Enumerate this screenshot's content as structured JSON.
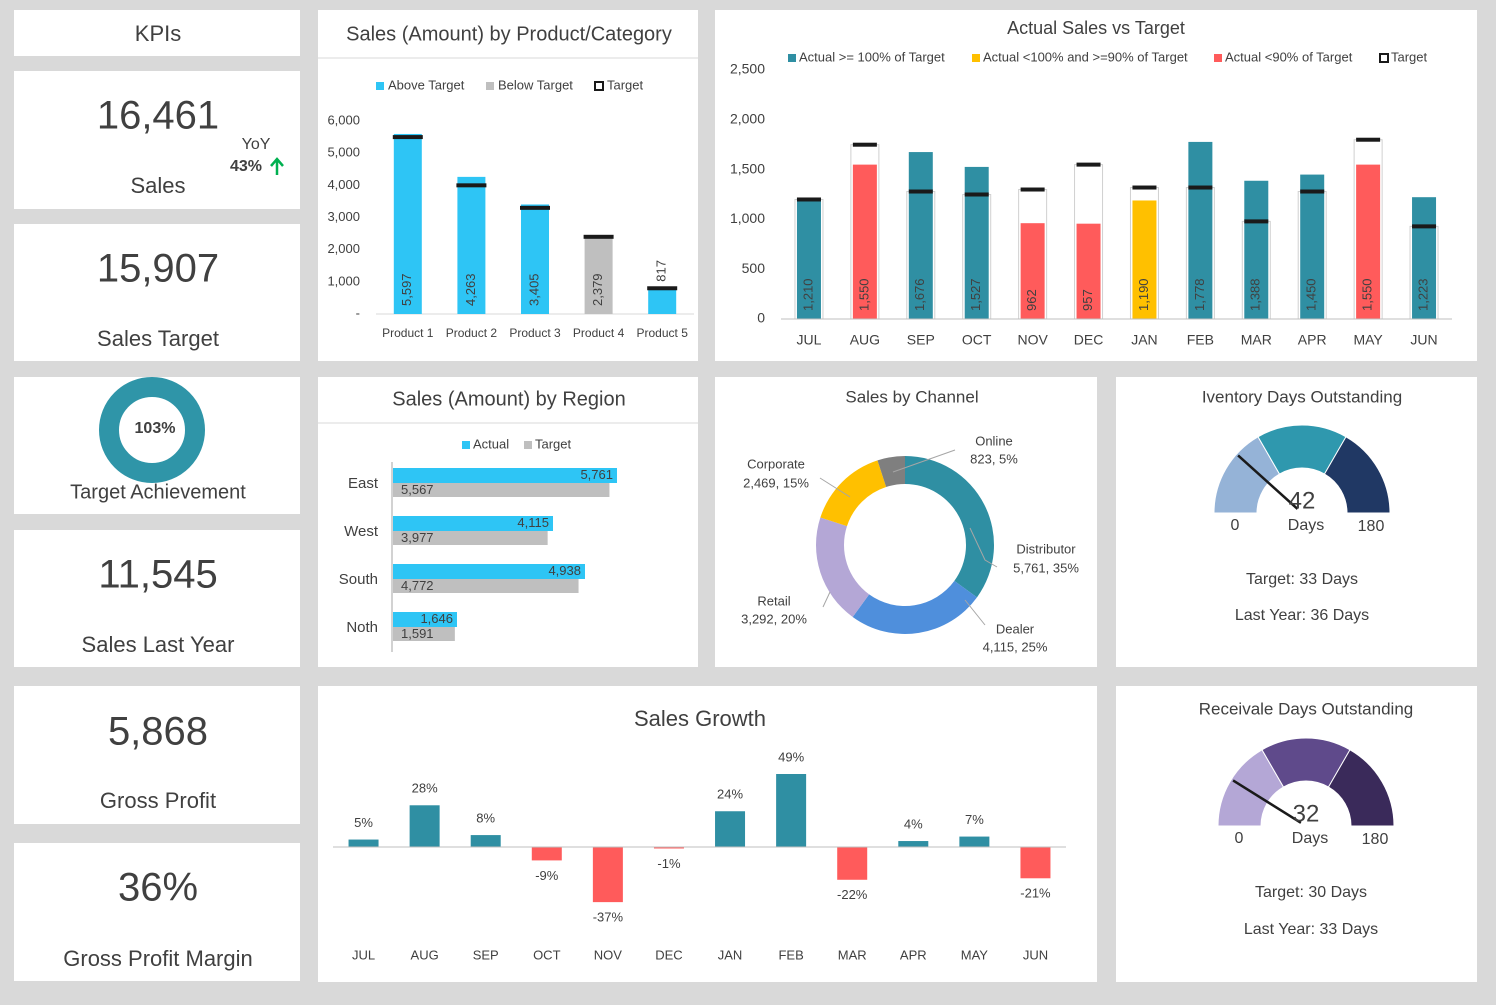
{
  "kpis": {
    "title": "KPIs",
    "cards": [
      {
        "value": "16,461",
        "label": "Sales",
        "yoy_label": "YoY",
        "yoy": "43%"
      },
      {
        "value": "15,907",
        "label": "Sales Target"
      },
      {
        "value": "11,545",
        "label": "Sales Last Year"
      },
      {
        "value": "5,868",
        "label": "Gross Profit"
      },
      {
        "value": "36%",
        "label": "Gross Profit Margin"
      }
    ]
  },
  "chart_data": [
    {
      "type": "ring",
      "label": "Target Achievement",
      "value": 103,
      "value_label": "103%",
      "color": "#2f95a8"
    },
    {
      "type": "bar_target",
      "title": "Sales (Amount) by Product/Category",
      "categories": [
        "Product 1",
        "Product 2",
        "Product 3",
        "Product 4",
        "Product 5"
      ],
      "values": [
        5597,
        4263,
        3405,
        2379,
        817
      ],
      "value_labels": [
        "5,597",
        "4,263",
        "3,405",
        "2,379",
        "817"
      ],
      "targets": [
        5500,
        4000,
        3300,
        2400,
        800
      ],
      "colors": [
        "#2ec5f5",
        "#2ec5f5",
        "#2ec5f5",
        "#bfbfbf",
        "#2ec5f5"
      ],
      "legend": [
        {
          "name": "Above Target",
          "color": "#2ec5f5"
        },
        {
          "name": "Below Target",
          "color": "#bfbfbf"
        },
        {
          "name": "Target",
          "color": "#1a1a1a"
        }
      ],
      "ylim": [
        0,
        6000
      ],
      "yticks": [
        {
          "value": 0,
          "label": "-"
        },
        {
          "value": 1000,
          "label": "1,000"
        },
        {
          "value": 2000,
          "label": "2,000"
        },
        {
          "value": 3000,
          "label": "3,000"
        },
        {
          "value": 4000,
          "label": "4,000"
        },
        {
          "value": 5000,
          "label": "5,000"
        },
        {
          "value": 6000,
          "label": "6,000"
        }
      ]
    },
    {
      "type": "column_threshold",
      "title": "Actual Sales vs Target",
      "categories": [
        "JUL",
        "AUG",
        "SEP",
        "OCT",
        "NOV",
        "DEC",
        "JAN",
        "FEB",
        "MAR",
        "APR",
        "MAY",
        "JUN"
      ],
      "values": [
        1210,
        1550,
        1676,
        1527,
        962,
        957,
        1190,
        1778,
        1388,
        1450,
        1550,
        1223
      ],
      "value_labels": [
        "1,210",
        "1,550",
        "1,676",
        "1,527",
        "962",
        "957",
        "1,190",
        "1,778",
        "1,388",
        "1,450",
        "1,550",
        "1,223"
      ],
      "targets": [
        1200,
        1750,
        1280,
        1250,
        1300,
        1550,
        1320,
        1320,
        980,
        1280,
        1800,
        930
      ],
      "colors": [
        "#2f8fa3",
        "#ff5b5b",
        "#2f8fa3",
        "#2f8fa3",
        "#ff5b5b",
        "#ff5b5b",
        "#ffc000",
        "#2f8fa3",
        "#2f8fa3",
        "#2f8fa3",
        "#ff5b5b",
        "#2f8fa3"
      ],
      "legend": [
        {
          "name": "Actual >= 100% of Target",
          "color": "#2f8fa3"
        },
        {
          "name": "Actual <100% and >=90% of Target",
          "color": "#ffc000"
        },
        {
          "name": "Actual <90% of Target",
          "color": "#ff5b5b"
        },
        {
          "name": "Target",
          "color": "#1a1a1a"
        }
      ],
      "ylim": [
        0,
        2500
      ],
      "yticks": [
        0,
        500,
        {
          "value": 1000,
          "label": "1,000"
        },
        {
          "value": 1500,
          "label": "1,500"
        },
        {
          "value": 2000,
          "label": "2,000"
        },
        {
          "value": 2500,
          "label": "2,500"
        }
      ]
    },
    {
      "type": "hbar",
      "title": "Sales (Amount) by Region",
      "categories": [
        "East",
        "West",
        "South",
        "Noth"
      ],
      "series": [
        {
          "name": "Actual",
          "color": "#2ec5f5",
          "values": [
            5761,
            4115,
            4938,
            1646
          ],
          "value_labels": [
            "5,761",
            "4,115",
            "4,938",
            "1,646"
          ]
        },
        {
          "name": "Target",
          "color": "#bfbfbf",
          "values": [
            5567,
            3977,
            4772,
            1591
          ],
          "value_labels": [
            "5,567",
            "3,977",
            "4,772",
            "1,591"
          ]
        }
      ]
    },
    {
      "type": "donut",
      "title": "Sales by Channel",
      "categories": [
        "Distributor",
        "Dealer",
        "Retail",
        "Corporate",
        "Online"
      ],
      "values": [
        5761,
        4115,
        3292,
        2469,
        823
      ],
      "value_labels": [
        "5,761, 35%",
        "4,115, 25%",
        "3,292, 20%",
        "2,469, 15%",
        "823, 5%"
      ],
      "colors": [
        "#2f8fa3",
        "#4f8fdc",
        "#b4a7d6",
        "#ffc000",
        "#7f7f7f"
      ]
    },
    {
      "type": "gauge",
      "title": "Iventory Days Outstanding",
      "title_color": "#216f8a",
      "value": 42,
      "unit": "Days",
      "range": [
        0,
        180
      ],
      "bands": [
        "#95b3d7",
        "#2f98ae",
        "#203864"
      ],
      "notes": [
        "Target: 33 Days",
        "Last Year: 36 Days"
      ],
      "note_colors": [
        "#2f98ae",
        "#7b3f8f"
      ]
    },
    {
      "type": "bar",
      "title": "Sales Growth",
      "categories": [
        "JUL",
        "AUG",
        "SEP",
        "OCT",
        "NOV",
        "DEC",
        "JAN",
        "FEB",
        "MAR",
        "APR",
        "MAY",
        "JUN"
      ],
      "values": [
        5,
        28,
        8,
        -9,
        -37,
        -1,
        24,
        49,
        -22,
        4,
        7,
        -21
      ],
      "value_labels": [
        "5%",
        "28%",
        "8%",
        "-9%",
        "-37%",
        "-1%",
        "24%",
        "49%",
        "-22%",
        "4%",
        "7%",
        "-21%"
      ],
      "colors": [
        "#2f8fa3",
        "#2f8fa3",
        "#2f8fa3",
        "#ff5b5b",
        "#ff5b5b",
        "#ff5b5b",
        "#2f8fa3",
        "#2f8fa3",
        "#ff5b5b",
        "#2f8fa3",
        "#2f8fa3",
        "#ff5b5b"
      ]
    },
    {
      "type": "gauge",
      "title": "Receivale Days Outstanding",
      "title_color": "#404040",
      "value": 32,
      "unit": "Days",
      "range": [
        0,
        180
      ],
      "bands": [
        "#b4a7d6",
        "#5f4a8b",
        "#3a2a5a"
      ],
      "notes": [
        "Target: 30 Days",
        "Last Year: 33 Days"
      ],
      "note_colors": [
        "#2f98ae",
        "#7b3f8f"
      ]
    }
  ]
}
